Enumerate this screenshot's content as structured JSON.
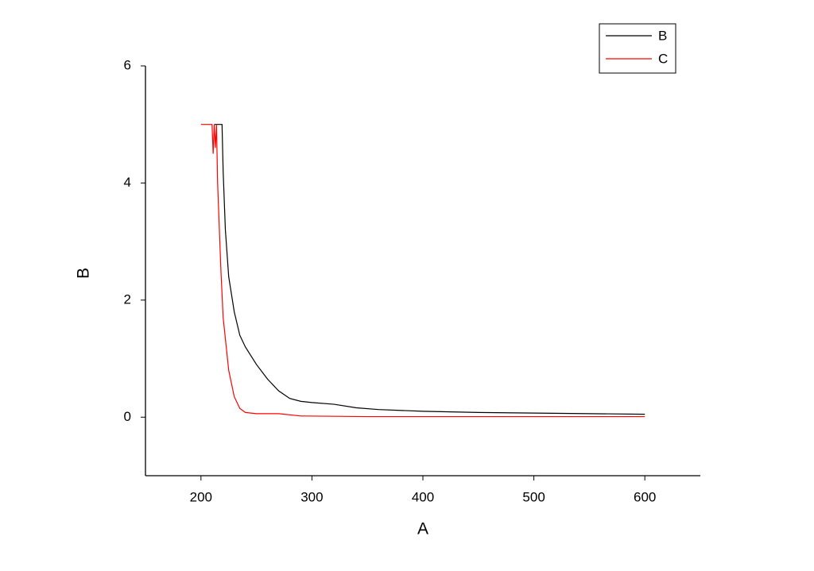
{
  "chart_data": {
    "type": "line",
    "x_label": "A",
    "y_label": "B",
    "xlim": [
      150,
      650
    ],
    "xticks": [
      200,
      300,
      400,
      500,
      600
    ],
    "ylim": [
      -1,
      6
    ],
    "yticks": [
      0,
      2,
      4,
      6
    ],
    "legend": "top-right",
    "series": [
      {
        "name": "B",
        "color": "#000000",
        "x": [
          212,
          219,
          220,
          222,
          225,
          230,
          235,
          240,
          250,
          260,
          270,
          280,
          290,
          300,
          320,
          340,
          360,
          400,
          450,
          500,
          550,
          600
        ],
        "values": [
          5,
          5,
          4.2,
          3.2,
          2.4,
          1.8,
          1.4,
          1.2,
          0.9,
          0.65,
          0.45,
          0.32,
          0.27,
          0.25,
          0.22,
          0.16,
          0.13,
          0.1,
          0.08,
          0.07,
          0.06,
          0.05
        ]
      },
      {
        "name": "C",
        "color": "#ff0000",
        "x": [
          200,
          210,
          211,
          212,
          213,
          214,
          215,
          218,
          220,
          225,
          230,
          235,
          240,
          250,
          270,
          290,
          350,
          600
        ],
        "values": [
          5,
          5,
          4.5,
          5,
          4.6,
          5,
          4,
          2.5,
          1.7,
          0.8,
          0.35,
          0.15,
          0.08,
          0.06,
          0.06,
          0.02,
          0.01,
          0.01
        ]
      }
    ]
  }
}
